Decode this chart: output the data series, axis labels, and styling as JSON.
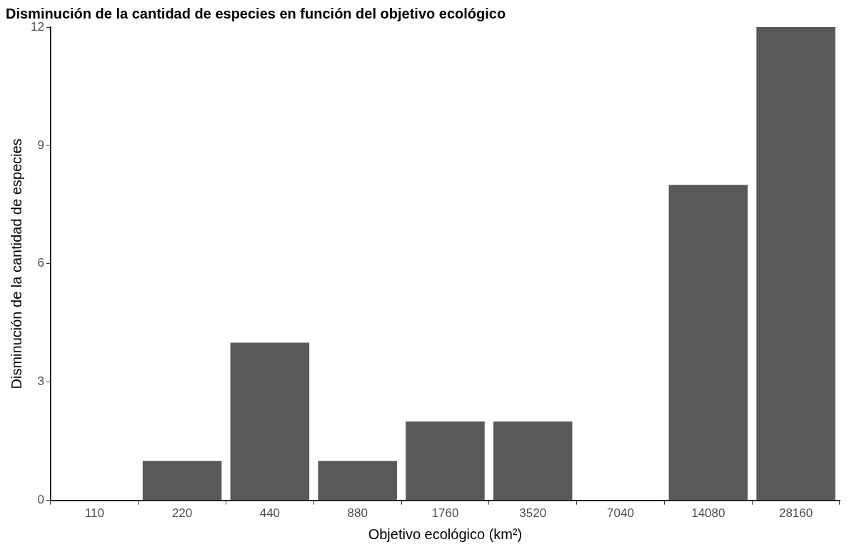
{
  "chart_data": {
    "type": "bar",
    "title": "Disminución de la cantidad de especies en función del objetivo ecológico",
    "xlabel": "Objetivo ecológico (km²)",
    "ylabel": "Disminución de la cantidad de especies",
    "categories": [
      "110",
      "220",
      "440",
      "880",
      "1760",
      "3520",
      "7040",
      "14080",
      "28160"
    ],
    "values": [
      0,
      1,
      4,
      1,
      2,
      2,
      0,
      8,
      12
    ],
    "color": "#595959",
    "ylim": [
      0,
      12
    ],
    "yticks": [
      0,
      3,
      6,
      9,
      12
    ],
    "grid": false,
    "legend": false
  }
}
